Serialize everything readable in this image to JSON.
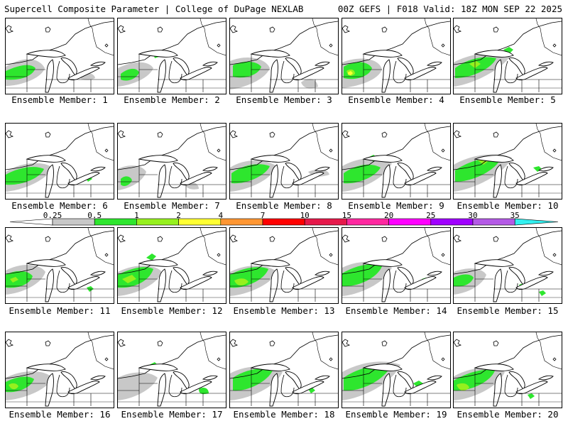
{
  "header": {
    "left": "Supercell Composite Parameter | College of DuPage NEXLAB",
    "right": "00Z GEFS | F018 Valid: 18Z MON SEP 22 2025"
  },
  "caption_prefix": "Ensemble Member:",
  "members": [
    {
      "label": "Ensemble Member: 1"
    },
    {
      "label": "Ensemble Member: 2"
    },
    {
      "label": "Ensemble Member: 3"
    },
    {
      "label": "Ensemble Member: 4"
    },
    {
      "label": "Ensemble Member: 5"
    },
    {
      "label": "Ensemble Member: 6"
    },
    {
      "label": "Ensemble Member: 7"
    },
    {
      "label": "Ensemble Member: 8"
    },
    {
      "label": "Ensemble Member: 9"
    },
    {
      "label": "Ensemble Member: 10"
    },
    {
      "label": "Ensemble Member: 11"
    },
    {
      "label": "Ensemble Member: 12"
    },
    {
      "label": "Ensemble Member: 13"
    },
    {
      "label": "Ensemble Member: 14"
    },
    {
      "label": "Ensemble Member: 15"
    },
    {
      "label": "Ensemble Member: 16"
    },
    {
      "label": "Ensemble Member: 17"
    },
    {
      "label": "Ensemble Member: 18"
    },
    {
      "label": "Ensemble Member: 19"
    },
    {
      "label": "Ensemble Member: 20"
    }
  ],
  "colorbar": {
    "levels": [
      "0.25",
      "0.5",
      "1",
      "2",
      "4",
      "7",
      "10",
      "15",
      "20",
      "25",
      "30",
      "35"
    ],
    "colors": [
      "#c8c8c8",
      "#2ee62e",
      "#96f01e",
      "#ffff32",
      "#ff9632",
      "#ff0000",
      "#e6194b",
      "#ff28a0",
      "#ff00ff",
      "#a000ff",
      "#b45ae6",
      "#32f0f0"
    ]
  }
}
